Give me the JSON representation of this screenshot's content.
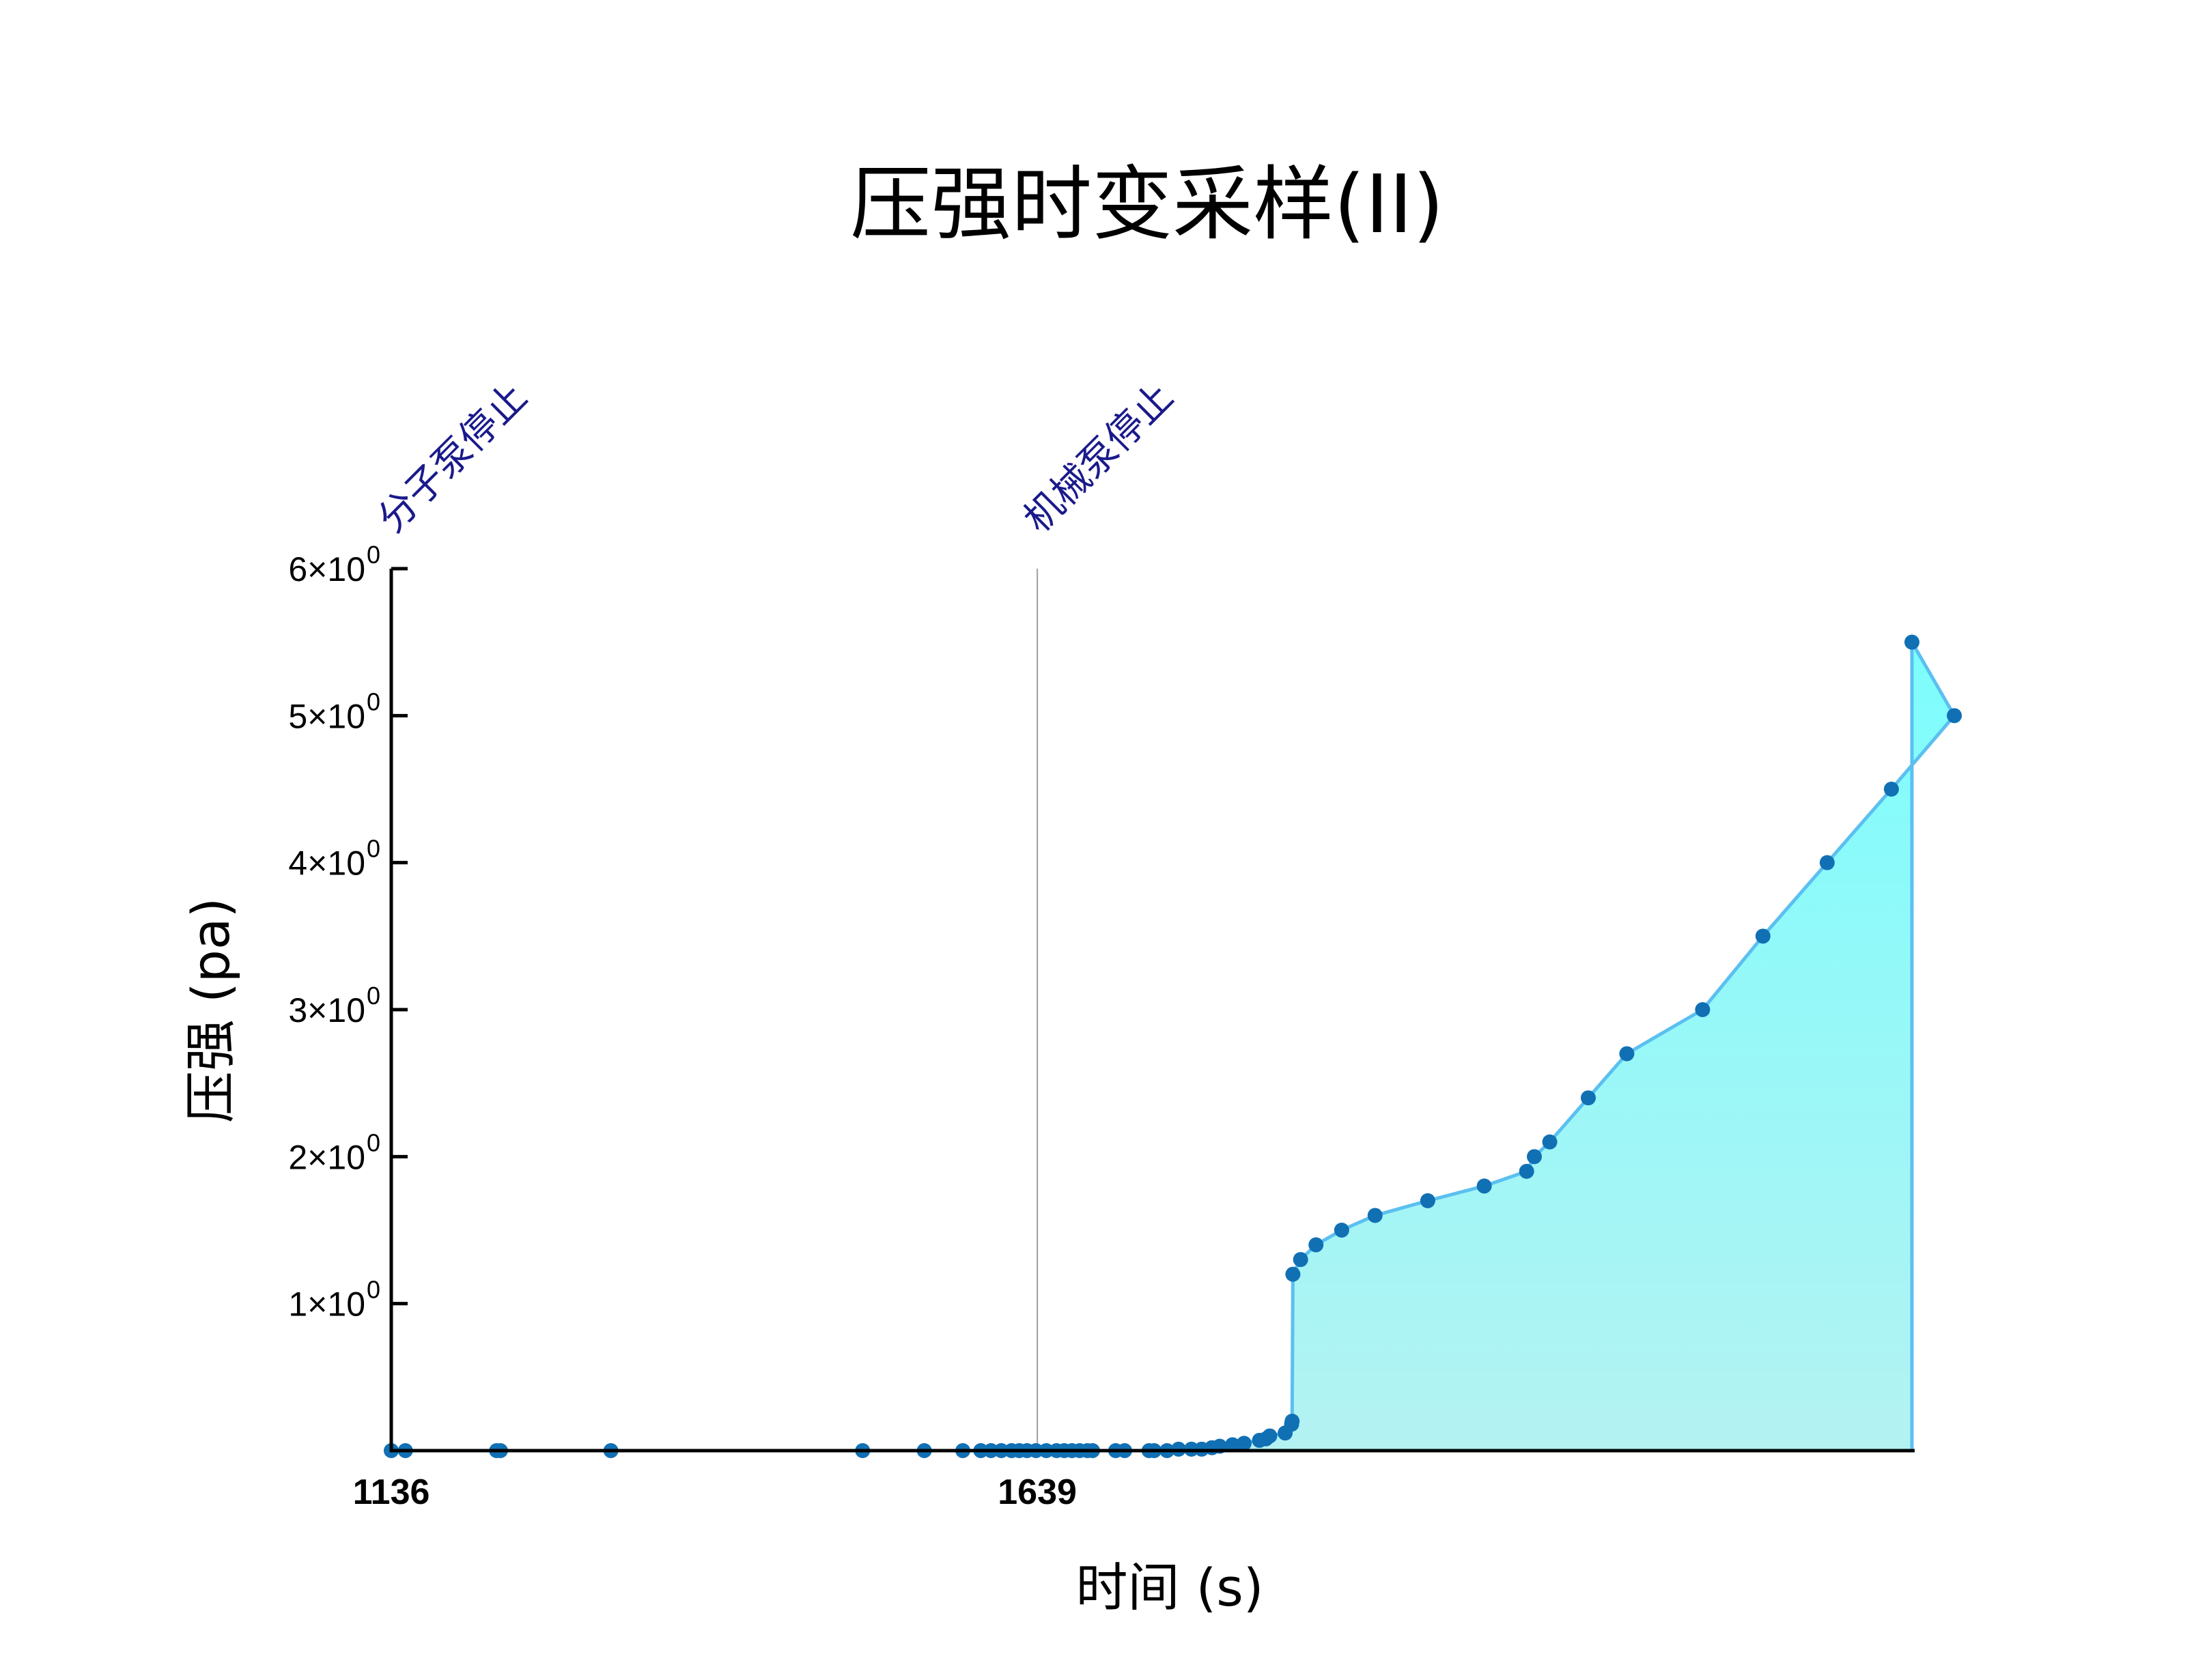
{
  "chart_data": {
    "type": "area",
    "title": "压强时变采样(II)",
    "xlabel": "时间 (s)",
    "ylabel": "压强 (pa)",
    "xlim": [
      1136,
      2320
    ],
    "ylim": [
      0,
      6
    ],
    "x_ticks": [
      {
        "value": 1136,
        "label": "1136"
      },
      {
        "value": 1639,
        "label": "1639"
      }
    ],
    "y_ticks": [
      {
        "value": 1,
        "mantissa": "1×10",
        "exp": "0"
      },
      {
        "value": 2,
        "mantissa": "2×10",
        "exp": "0"
      },
      {
        "value": 3,
        "mantissa": "3×10",
        "exp": "0"
      },
      {
        "value": 4,
        "mantissa": "4×10",
        "exp": "0"
      },
      {
        "value": 5,
        "mantissa": "5×10",
        "exp": "0"
      },
      {
        "value": 6,
        "mantissa": "6×10",
        "exp": "0"
      }
    ],
    "annotations": [
      {
        "x": 1136,
        "text": "分子泵停止"
      },
      {
        "x": 1639,
        "text": "机械泵停止"
      }
    ],
    "series": [
      {
        "x": [
          1136,
          1147,
          1218,
          1221,
          1307,
          1503,
          1551,
          1581,
          1595,
          1603,
          1611,
          1619,
          1625,
          1631,
          1638,
          1646,
          1654,
          1660,
          1666,
          1672,
          1678,
          1682,
          1700,
          1707,
          1726,
          1730,
          1740,
          1749,
          1759,
          1767,
          1775,
          1781,
          1791,
          1800,
          1812,
          1817,
          1820,
          1832,
          1837,
          1837.4,
          1838,
          1844,
          1856,
          1876,
          1902,
          1943,
          1987,
          2020,
          2026,
          2038,
          2068,
          2098,
          2157,
          2204,
          2254,
          2304,
          2353,
          2320
        ],
        "y": [
          0,
          0,
          0,
          0,
          0,
          0,
          0,
          0,
          0,
          0,
          0,
          0,
          0,
          0,
          0,
          0,
          0,
          0,
          0,
          0,
          0,
          0,
          0,
          0,
          0,
          0,
          0,
          0.01,
          0.01,
          0.01,
          0.02,
          0.03,
          0.04,
          0.05,
          0.07,
          0.08,
          0.1,
          0.12,
          0.18,
          0.2,
          1.2,
          1.3,
          1.4,
          1.5,
          1.6,
          1.7,
          1.8,
          1.9,
          2.0,
          2.1,
          2.4,
          2.7,
          3.0,
          3.5,
          4.0,
          4.5,
          5.0,
          5.5
        ]
      }
    ],
    "colors": {
      "line": "#5bc0f0",
      "marker": "#1170b4",
      "fill_top": "#7dfdfd",
      "fill_bottom": "#b4f2f2",
      "annotation": "#1a1a8c",
      "vline": "#a0a0a0"
    }
  }
}
